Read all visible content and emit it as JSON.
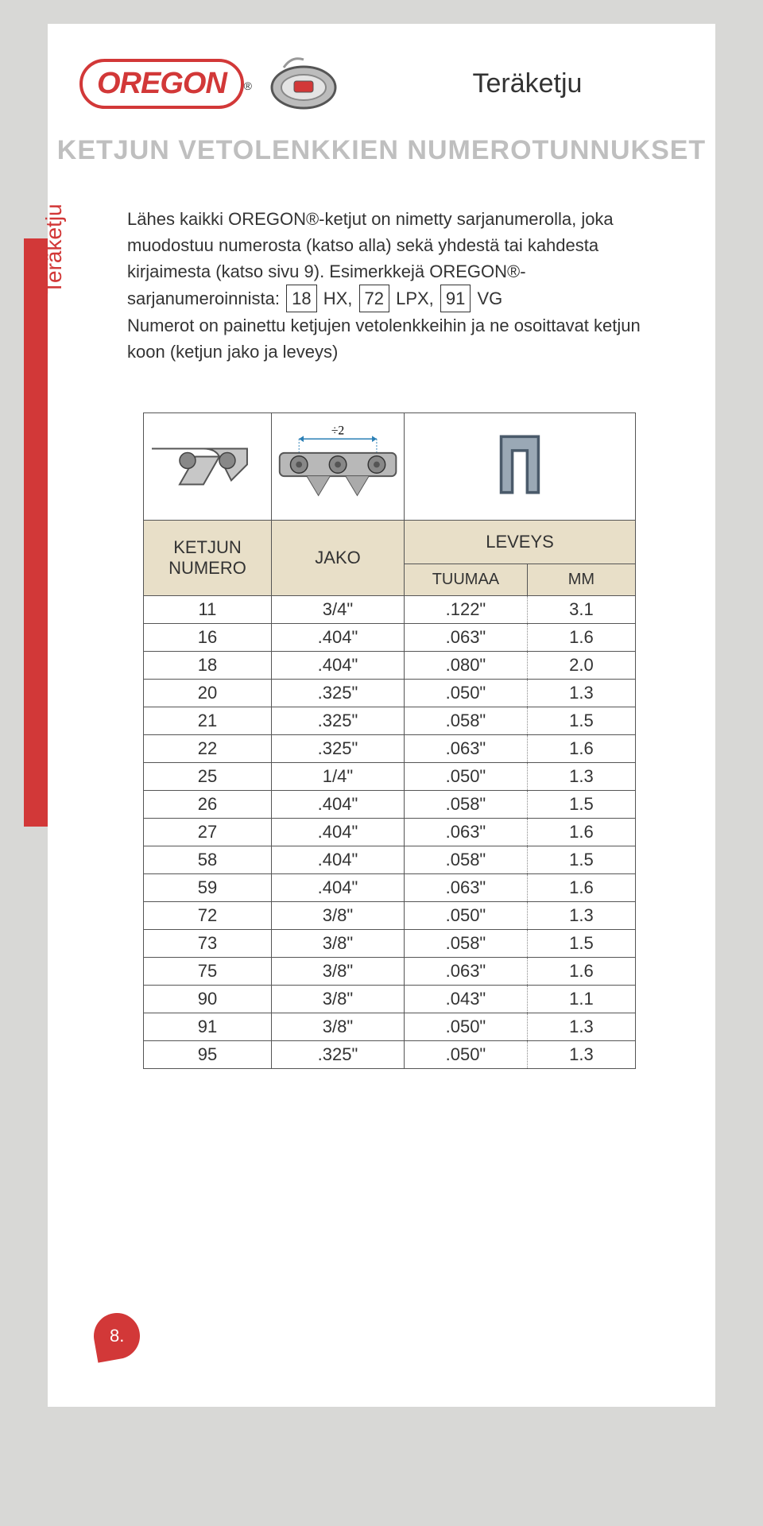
{
  "sidebar_label": "Teräketju",
  "logo_text": "OREGON",
  "page_title": "Teräketju",
  "subtitle": "KETJUN VETOLENKKIEN NUMEROTUNNUKSET",
  "intro_part1": "Lähes kaikki OREGON®-ketjut on nimetty sarjanumerolla, joka muodostuu numerosta (katso alla) sekä yhdestä tai kahdesta kirjaimesta (katso sivu 9). Esimerkkejä OREGON®-sarjanumeroinnista: ",
  "box1": "18",
  "mid1": " HX, ",
  "box2": "72",
  "mid2": " LPX, ",
  "box3": "91",
  "mid3": " VG",
  "intro_part2": "Numerot on painettu ketjujen vetolenkkeihin ja ne osoittavat ketjun koon (ketjun jako ja leveys)",
  "headers": {
    "col1": "KETJUN NUMERO",
    "col2": "JAKO",
    "col3": "LEVEYS",
    "sub_tu": "TUUMAA",
    "sub_mm": "MM"
  },
  "div_label": "÷2",
  "rows": [
    {
      "n": "11",
      "j": "3/4\"",
      "t": ".122\"",
      "m": "3.1"
    },
    {
      "n": "16",
      "j": ".404\"",
      "t": ".063\"",
      "m": "1.6"
    },
    {
      "n": "18",
      "j": ".404\"",
      "t": ".080\"",
      "m": "2.0"
    },
    {
      "n": "20",
      "j": ".325\"",
      "t": ".050\"",
      "m": "1.3"
    },
    {
      "n": "21",
      "j": ".325\"",
      "t": ".058\"",
      "m": "1.5"
    },
    {
      "n": "22",
      "j": ".325\"",
      "t": ".063\"",
      "m": "1.6"
    },
    {
      "n": "25",
      "j": "1/4\"",
      "t": ".050\"",
      "m": "1.3"
    },
    {
      "n": "26",
      "j": ".404\"",
      "t": ".058\"",
      "m": "1.5"
    },
    {
      "n": "27",
      "j": ".404\"",
      "t": ".063\"",
      "m": "1.6"
    },
    {
      "n": "58",
      "j": ".404\"",
      "t": ".058\"",
      "m": "1.5"
    },
    {
      "n": "59",
      "j": ".404\"",
      "t": ".063\"",
      "m": "1.6"
    },
    {
      "n": "72",
      "j": "3/8\"",
      "t": ".050\"",
      "m": "1.3"
    },
    {
      "n": "73",
      "j": "3/8\"",
      "t": ".058\"",
      "m": "1.5"
    },
    {
      "n": "75",
      "j": "3/8\"",
      "t": ".063\"",
      "m": "1.6"
    },
    {
      "n": "90",
      "j": "3/8\"",
      "t": ".043\"",
      "m": "1.1"
    },
    {
      "n": "91",
      "j": "3/8\"",
      "t": ".050\"",
      "m": "1.3"
    },
    {
      "n": "95",
      "j": ".325\"",
      "t": ".050\"",
      "m": "1.3"
    }
  ],
  "page_number": "8.",
  "colors": {
    "accent": "#d23838",
    "header_bg": "#e8dfc8",
    "page_bg": "#ffffff",
    "body_bg": "#d8d8d6"
  }
}
